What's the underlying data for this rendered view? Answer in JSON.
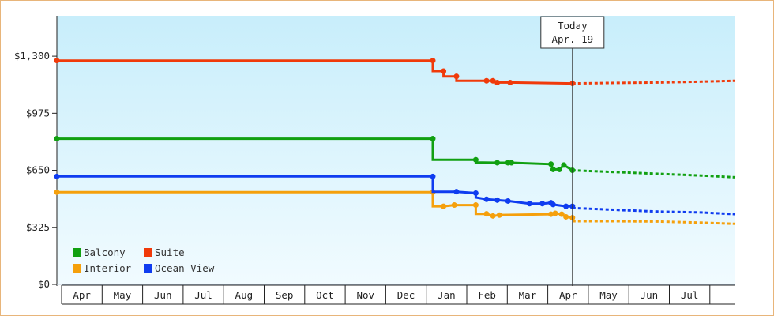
{
  "chart_data": {
    "type": "line",
    "ylabels": [
      "$1,300",
      "$975",
      "$650",
      "$325",
      "$0"
    ],
    "yticks": [
      1300,
      975,
      650,
      325,
      0
    ],
    "ylim": [
      0,
      1530
    ],
    "months": [
      "Apr",
      "May",
      "Jun",
      "Jul",
      "Aug",
      "Sep",
      "Oct",
      "Nov",
      "Dec",
      "Jan",
      "Feb",
      "Mar",
      "Apr",
      "May",
      "Jun",
      "Jul"
    ],
    "today": {
      "line1": "Today",
      "line2": "Apr. 19",
      "t": 12.0
    },
    "grid": false,
    "legend": "bottom-left",
    "series": [
      {
        "name": "Balcony",
        "color": "#11a011",
        "points": [
          [
            0,
            830
          ],
          [
            8.75,
            830
          ],
          [
            8.75,
            710
          ],
          [
            9.75,
            710
          ],
          [
            9.75,
            695
          ],
          [
            10.25,
            693
          ],
          [
            10.5,
            693
          ],
          [
            10.58,
            693
          ],
          [
            11.5,
            685
          ],
          [
            11.55,
            655
          ],
          [
            11.7,
            655
          ],
          [
            11.8,
            680
          ],
          [
            12.0,
            650
          ]
        ],
        "forecast": [
          [
            12.0,
            650
          ],
          [
            13,
            640
          ],
          [
            14,
            630
          ],
          [
            15,
            620
          ],
          [
            16,
            610
          ]
        ]
      },
      {
        "name": "Suite",
        "color": "#f03a0a",
        "points": [
          [
            0,
            1275
          ],
          [
            8.75,
            1275
          ],
          [
            8.75,
            1215
          ],
          [
            9.0,
            1215
          ],
          [
            9.0,
            1185
          ],
          [
            9.3,
            1185
          ],
          [
            9.3,
            1160
          ],
          [
            10.0,
            1160
          ],
          [
            10.15,
            1160
          ],
          [
            10.25,
            1150
          ],
          [
            10.55,
            1150
          ],
          [
            12.0,
            1145
          ]
        ],
        "forecast": [
          [
            12.0,
            1145
          ],
          [
            13,
            1148
          ],
          [
            14,
            1150
          ],
          [
            15,
            1155
          ],
          [
            16,
            1160
          ]
        ]
      },
      {
        "name": "Interior",
        "color": "#f5a00c",
        "points": [
          [
            0,
            525
          ],
          [
            8.75,
            525
          ],
          [
            8.75,
            445
          ],
          [
            9.0,
            445
          ],
          [
            9.25,
            452
          ],
          [
            9.75,
            452
          ],
          [
            9.75,
            402
          ],
          [
            10.0,
            402
          ],
          [
            10.15,
            390
          ],
          [
            10.3,
            395
          ],
          [
            11.5,
            400
          ],
          [
            11.6,
            405
          ],
          [
            11.75,
            400
          ],
          [
            11.85,
            385
          ],
          [
            12.0,
            380
          ]
        ],
        "forecast": [
          [
            12.0,
            360
          ],
          [
            13,
            360
          ],
          [
            14,
            358
          ],
          [
            15,
            352
          ],
          [
            16,
            345
          ]
        ]
      },
      {
        "name": "Ocean View",
        "color": "#0f3cf0",
        "points": [
          [
            0,
            615
          ],
          [
            8.75,
            615
          ],
          [
            8.75,
            528
          ],
          [
            9.3,
            528
          ],
          [
            9.75,
            520
          ],
          [
            9.75,
            495
          ],
          [
            10.0,
            485
          ],
          [
            10.25,
            480
          ],
          [
            10.5,
            475
          ],
          [
            11.0,
            460
          ],
          [
            11.3,
            460
          ],
          [
            11.5,
            465
          ],
          [
            11.55,
            455
          ],
          [
            11.85,
            445
          ],
          [
            12.0,
            445
          ]
        ],
        "forecast": [
          [
            12.0,
            435
          ],
          [
            13,
            425
          ],
          [
            14,
            415
          ],
          [
            15,
            410
          ],
          [
            16,
            400
          ]
        ]
      }
    ]
  }
}
